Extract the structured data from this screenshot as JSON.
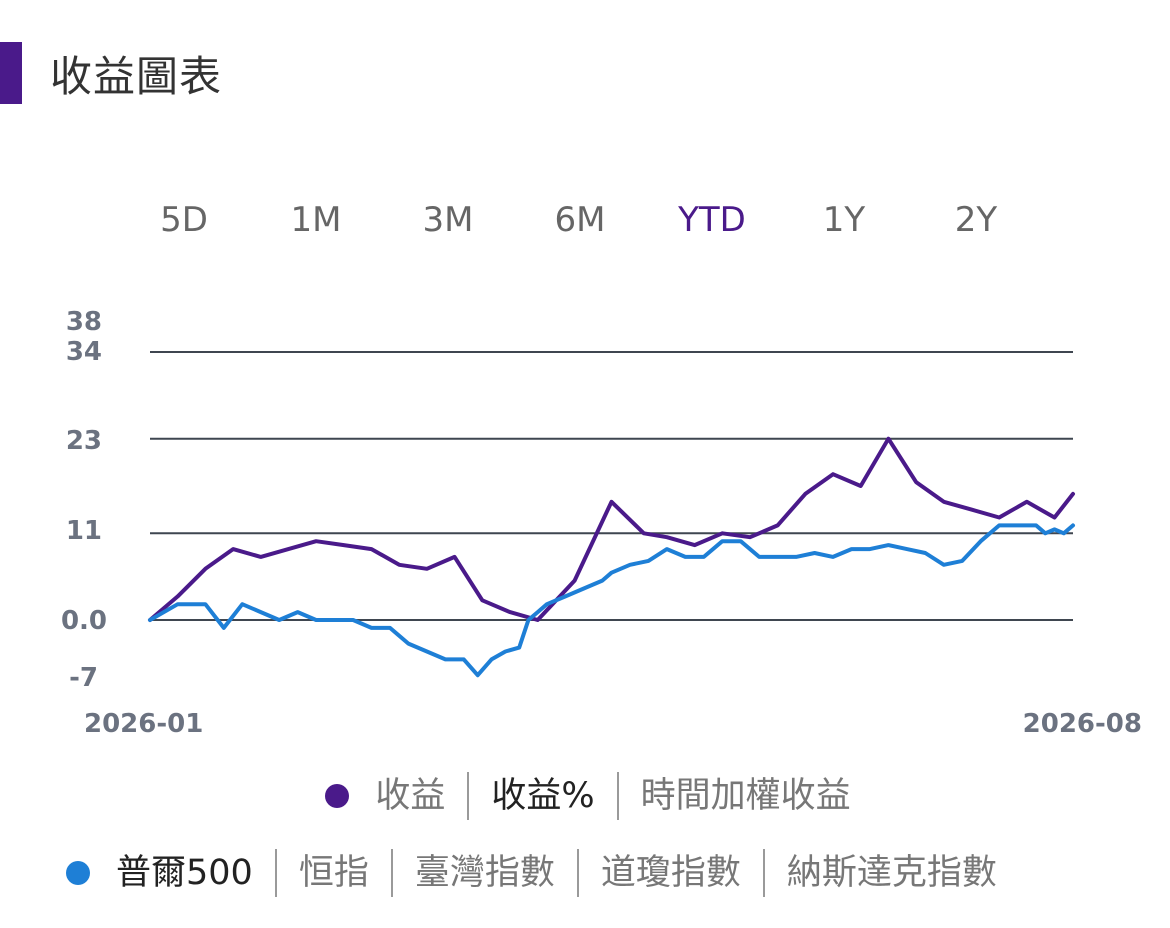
{
  "header": {
    "title": "收益圖表",
    "accent_color": "#4a1a8a"
  },
  "period_tabs": [
    {
      "label": "5D",
      "active": false
    },
    {
      "label": "1M",
      "active": false
    },
    {
      "label": "3M",
      "active": false
    },
    {
      "label": "6M",
      "active": false
    },
    {
      "label": "YTD",
      "active": true
    },
    {
      "label": "1Y",
      "active": false
    },
    {
      "label": "2Y",
      "active": false
    }
  ],
  "legend": {
    "metrics": {
      "dot_color": "#4a1a8a",
      "items": [
        {
          "label": "收益",
          "selected": false
        },
        {
          "label": "收益%",
          "selected": true
        },
        {
          "label": "時間加權收益",
          "selected": false
        }
      ]
    },
    "benchmarks": {
      "dot_color": "#1e7fd6",
      "items": [
        {
          "label": "普爾500",
          "selected": true
        },
        {
          "label": "恒指",
          "selected": false
        },
        {
          "label": "臺灣指數",
          "selected": false
        },
        {
          "label": "道瓊指數",
          "selected": false
        },
        {
          "label": "納斯達克指數",
          "selected": false
        }
      ]
    }
  },
  "chart_data": {
    "type": "line",
    "y_ticks": [
      "38",
      "34",
      "23",
      "11",
      "0.0",
      "-7"
    ],
    "gridlines_at": [
      34,
      23,
      11,
      0
    ],
    "ylim": [
      -7,
      38
    ],
    "x_labels": [
      "2026-01",
      "2026-08"
    ],
    "xlim": [
      0,
      1
    ],
    "series": [
      {
        "color": "#4a1a8a",
        "x": [
          0,
          0.03,
          0.06,
          0.09,
          0.12,
          0.15,
          0.18,
          0.21,
          0.24,
          0.27,
          0.3,
          0.33,
          0.36,
          0.39,
          0.42,
          0.46,
          0.5,
          0.535,
          0.56,
          0.59,
          0.62,
          0.65,
          0.68,
          0.71,
          0.74,
          0.77,
          0.8,
          0.83,
          0.86,
          0.89,
          0.92,
          0.95,
          0.98,
          1.0
        ],
        "values": [
          0,
          3,
          6.5,
          9,
          8,
          9,
          10,
          9.5,
          9,
          7,
          6.5,
          8,
          2.5,
          1,
          0,
          5,
          15,
          11,
          10.5,
          9.5,
          11,
          10.5,
          12,
          16,
          18.5,
          17,
          23,
          17.5,
          15,
          14,
          13,
          15,
          13,
          16
        ]
      },
      {
        "color": "#1e7fd6",
        "x": [
          0,
          0.03,
          0.06,
          0.08,
          0.1,
          0.12,
          0.14,
          0.16,
          0.18,
          0.2,
          0.22,
          0.24,
          0.26,
          0.28,
          0.3,
          0.32,
          0.34,
          0.355,
          0.37,
          0.385,
          0.4,
          0.41,
          0.42,
          0.43,
          0.45,
          0.47,
          0.49,
          0.5,
          0.52,
          0.54,
          0.56,
          0.58,
          0.6,
          0.62,
          0.64,
          0.66,
          0.68,
          0.7,
          0.72,
          0.74,
          0.76,
          0.78,
          0.8,
          0.82,
          0.84,
          0.86,
          0.88,
          0.9,
          0.92,
          0.94,
          0.96,
          0.97,
          0.98,
          0.99,
          1.0
        ],
        "values": [
          0,
          2,
          2,
          -1,
          2,
          1,
          0,
          1,
          0,
          0,
          0,
          -1,
          -1,
          -3,
          -4,
          -5,
          -5,
          -7,
          -5,
          -4,
          -3.5,
          0,
          1,
          2,
          3,
          4,
          5,
          6,
          7,
          7.5,
          9,
          8,
          8,
          10,
          10,
          8,
          8,
          8,
          8.5,
          8,
          9,
          9,
          9.5,
          9,
          8.5,
          7,
          7.5,
          10,
          12,
          12,
          12,
          11,
          11.5,
          11,
          12
        ]
      }
    ]
  }
}
